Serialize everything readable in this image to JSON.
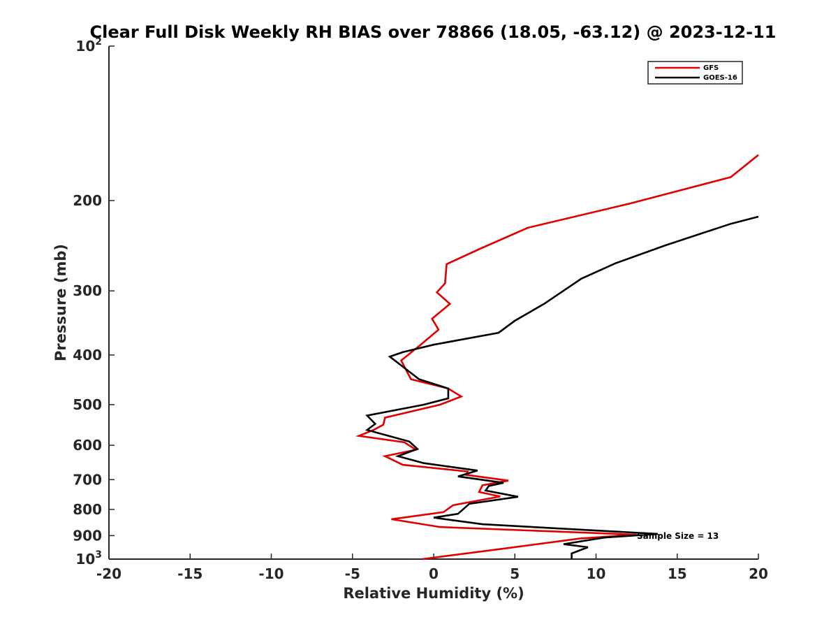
{
  "chart_data": {
    "type": "line",
    "title": "Clear Full Disk Weekly RH BIAS over 78866 (18.05, -63.12) @ 2023-12-11",
    "xlabel": "Relative Humidity (%)",
    "ylabel": "Pressure (mb)",
    "xlim": [
      -20,
      20
    ],
    "ylim": [
      100,
      1000
    ],
    "y_scale": "log",
    "y_reversed": true,
    "x_ticks": [
      "-20",
      "-15",
      "-10",
      "-5",
      "0",
      "5",
      "10",
      "15",
      "20"
    ],
    "x_tick_values": [
      -20,
      -15,
      -10,
      -5,
      0,
      5,
      10,
      15,
      20
    ],
    "y_ticks": [
      {
        "value": 100,
        "base": "10",
        "exp": "2"
      },
      {
        "value": 200,
        "base": "200",
        "exp": ""
      },
      {
        "value": 300,
        "base": "300",
        "exp": ""
      },
      {
        "value": 400,
        "base": "400",
        "exp": ""
      },
      {
        "value": 500,
        "base": "500",
        "exp": ""
      },
      {
        "value": 600,
        "base": "600",
        "exp": ""
      },
      {
        "value": 700,
        "base": "700",
        "exp": ""
      },
      {
        "value": 800,
        "base": "800",
        "exp": ""
      },
      {
        "value": 900,
        "base": "900",
        "exp": ""
      },
      {
        "value": 1000,
        "base": "10",
        "exp": "3"
      }
    ],
    "legend_position": "top-right",
    "annotation": "Sample Size = 13",
    "series": [
      {
        "name": "GFS",
        "color": "#e00000",
        "points": [
          [
            20.0,
            163
          ],
          [
            18.3,
            180
          ],
          [
            12.0,
            203
          ],
          [
            5.8,
            226
          ],
          [
            2.9,
            248
          ],
          [
            0.8,
            266
          ],
          [
            0.7,
            290
          ],
          [
            0.2,
            302
          ],
          [
            1.0,
            318
          ],
          [
            -0.1,
            340
          ],
          [
            0.3,
            357
          ],
          [
            -0.8,
            382
          ],
          [
            -2.0,
            410
          ],
          [
            -1.4,
            446
          ],
          [
            0.9,
            465
          ],
          [
            1.7,
            482
          ],
          [
            0.4,
            500
          ],
          [
            -3.0,
            530
          ],
          [
            -3.1,
            547
          ],
          [
            -3.7,
            560
          ],
          [
            -4.6,
            575
          ],
          [
            -1.8,
            592
          ],
          [
            -1.1,
            612
          ],
          [
            -3.0,
            630
          ],
          [
            -1.9,
            655
          ],
          [
            2.1,
            675
          ],
          [
            2.0,
            685
          ],
          [
            4.6,
            703
          ],
          [
            3.0,
            718
          ],
          [
            2.8,
            740
          ],
          [
            4.1,
            755
          ],
          [
            1.2,
            785
          ],
          [
            0.6,
            810
          ],
          [
            -2.6,
            836
          ],
          [
            0.4,
            866
          ],
          [
            12.5,
            896
          ],
          [
            9.0,
            912
          ],
          [
            4.2,
            955
          ],
          [
            -0.7,
            1000
          ]
        ]
      },
      {
        "name": "GOES-16",
        "color": "#000000",
        "points": [
          [
            20.0,
            215
          ],
          [
            18.3,
            222
          ],
          [
            14.2,
            245
          ],
          [
            11.2,
            265
          ],
          [
            9.1,
            284
          ],
          [
            6.8,
            318
          ],
          [
            5.0,
            343
          ],
          [
            4.0,
            362
          ],
          [
            0.0,
            382
          ],
          [
            -1.9,
            395
          ],
          [
            -2.7,
            403
          ],
          [
            -0.9,
            446
          ],
          [
            0.9,
            465
          ],
          [
            0.9,
            486
          ],
          [
            -0.6,
            500
          ],
          [
            -4.1,
            525
          ],
          [
            -3.6,
            545
          ],
          [
            -4.1,
            560
          ],
          [
            -1.5,
            590
          ],
          [
            -1.0,
            610
          ],
          [
            -2.2,
            630
          ],
          [
            -0.6,
            650
          ],
          [
            2.7,
            672
          ],
          [
            1.5,
            690
          ],
          [
            4.3,
            710
          ],
          [
            3.4,
            720
          ],
          [
            3.2,
            735
          ],
          [
            5.2,
            756
          ],
          [
            2.2,
            780
          ],
          [
            1.5,
            816
          ],
          [
            0.0,
            830
          ],
          [
            3.0,
            855
          ],
          [
            13.8,
            893
          ],
          [
            10.5,
            908
          ],
          [
            8.0,
            935
          ],
          [
            9.5,
            948
          ],
          [
            8.5,
            975
          ],
          [
            8.5,
            1000
          ]
        ]
      }
    ]
  }
}
